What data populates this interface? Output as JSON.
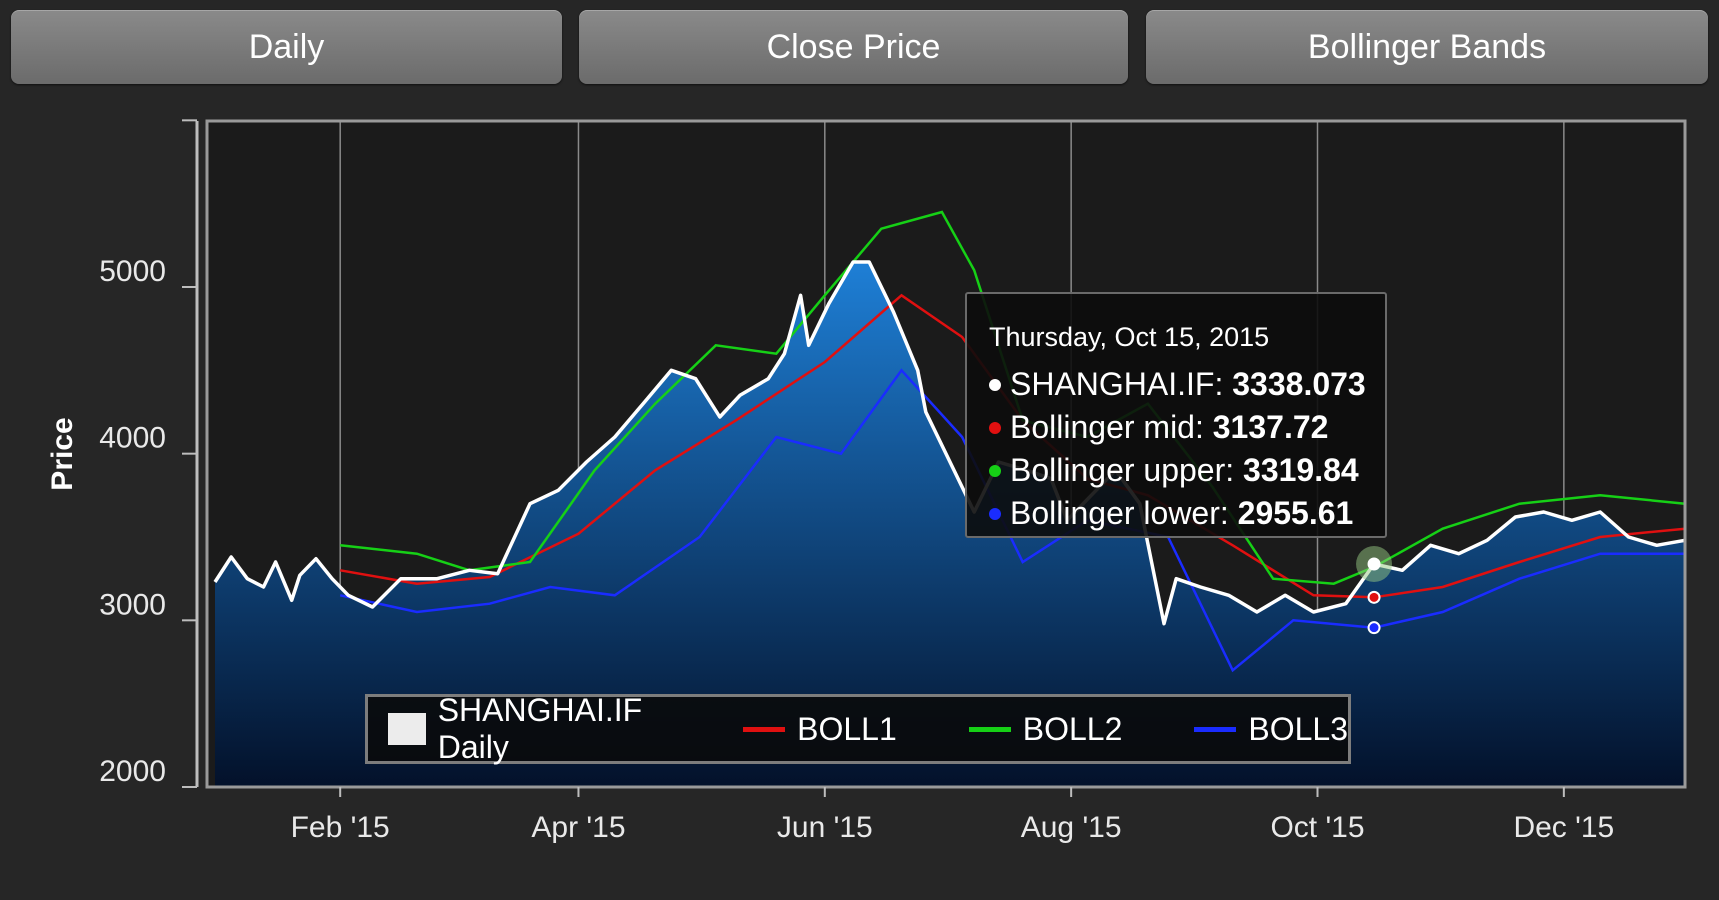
{
  "toolbar": {
    "interval_label": "Daily",
    "price_type_label": "Close Price",
    "indicator_label": "Bollinger Bands"
  },
  "colors": {
    "background": "#262626",
    "price_line": "#ffffff",
    "price_fill_top": "#1e7fd6",
    "price_fill_bottom": "#03112a",
    "boll_mid": "#e01010",
    "boll_upper": "#16d016",
    "boll_lower": "#1a2cff",
    "grid": "#8a8a8a"
  },
  "tooltip": {
    "date": "Thursday, Oct 15, 2015",
    "rows": [
      {
        "label": "SHANGHAI.IF:",
        "value": "3338.073",
        "color": "#ffffff"
      },
      {
        "label": "Bollinger mid:",
        "value": "3137.72",
        "color": "#e01010"
      },
      {
        "label": "Bollinger upper:",
        "value": "3319.84",
        "color": "#16d016"
      },
      {
        "label": "Bollinger lower:",
        "value": "2955.61",
        "color": "#1a2cff"
      }
    ]
  },
  "legend": {
    "items": [
      {
        "label": "SHANGHAI.IF Daily",
        "kind": "area"
      },
      {
        "label": "BOLL1",
        "kind": "line",
        "color": "#e01010"
      },
      {
        "label": "BOLL2",
        "kind": "line",
        "color": "#16d016"
      },
      {
        "label": "BOLL3",
        "kind": "line",
        "color": "#1a2cff"
      }
    ]
  },
  "chart_data": {
    "type": "area",
    "ylabel": "Price",
    "xlabel": "",
    "ylim": [
      2000,
      6000
    ],
    "xlim": [
      "2015-01-01",
      "2015-12-31"
    ],
    "yticks": [
      2000,
      3000,
      4000,
      5000
    ],
    "xticks": [
      {
        "label": "Feb '15",
        "date": "2015-02-01"
      },
      {
        "label": "Apr '15",
        "date": "2015-04-01"
      },
      {
        "label": "Jun '15",
        "date": "2015-06-01"
      },
      {
        "label": "Aug '15",
        "date": "2015-08-01"
      },
      {
        "label": "Oct '15",
        "date": "2015-10-01"
      },
      {
        "label": "Dec '15",
        "date": "2015-12-01"
      }
    ],
    "grid": true,
    "legend_position": "bottom",
    "highlight_date": "2015-10-15",
    "series": [
      {
        "name": "SHANGHAI.IF Daily",
        "x": [
          "2015-01-01",
          "2015-01-05",
          "2015-01-09",
          "2015-01-13",
          "2015-01-16",
          "2015-01-20",
          "2015-01-22",
          "2015-01-26",
          "2015-01-30",
          "2015-02-03",
          "2015-02-09",
          "2015-02-16",
          "2015-02-25",
          "2015-03-05",
          "2015-03-12",
          "2015-03-20",
          "2015-03-27",
          "2015-04-03",
          "2015-04-10",
          "2015-04-17",
          "2015-04-24",
          "2015-04-30",
          "2015-05-06",
          "2015-05-11",
          "2015-05-18",
          "2015-05-22",
          "2015-05-26",
          "2015-05-28",
          "2015-06-02",
          "2015-06-08",
          "2015-06-12",
          "2015-06-18",
          "2015-06-24",
          "2015-06-26",
          "2015-07-03",
          "2015-07-08",
          "2015-07-14",
          "2015-07-21",
          "2015-07-27",
          "2015-07-31",
          "2015-08-06",
          "2015-08-12",
          "2015-08-18",
          "2015-08-24",
          "2015-08-27",
          "2015-09-02",
          "2015-09-09",
          "2015-09-16",
          "2015-09-23",
          "2015-09-30",
          "2015-10-08",
          "2015-10-15",
          "2015-10-22",
          "2015-10-29",
          "2015-11-05",
          "2015-11-12",
          "2015-11-19",
          "2015-11-26",
          "2015-12-03",
          "2015-12-10",
          "2015-12-17",
          "2015-12-24",
          "2015-12-31"
        ],
        "values": [
          3230,
          3380,
          3250,
          3200,
          3350,
          3120,
          3270,
          3370,
          3250,
          3150,
          3080,
          3250,
          3250,
          3300,
          3280,
          3700,
          3780,
          3950,
          4100,
          4300,
          4500,
          4450,
          4220,
          4350,
          4450,
          4600,
          4950,
          4650,
          4900,
          5150,
          5150,
          4850,
          4500,
          4250,
          3900,
          3650,
          3950,
          3900,
          3850,
          3600,
          3750,
          3900,
          3700,
          2980,
          3250,
          3200,
          3150,
          3050,
          3150,
          3050,
          3100,
          3338,
          3300,
          3450,
          3400,
          3480,
          3620,
          3650,
          3600,
          3650,
          3500,
          3450,
          3480
        ]
      },
      {
        "name": "BOLL1",
        "x": [
          "2015-02-01",
          "2015-02-20",
          "2015-03-10",
          "2015-04-01",
          "2015-04-20",
          "2015-05-10",
          "2015-06-01",
          "2015-06-20",
          "2015-07-05",
          "2015-07-20",
          "2015-08-05",
          "2015-08-20",
          "2015-09-10",
          "2015-09-30",
          "2015-10-15",
          "2015-11-01",
          "2015-11-20",
          "2015-12-10",
          "2015-12-31"
        ],
        "values": [
          3300,
          3220,
          3260,
          3520,
          3900,
          4200,
          4550,
          4950,
          4700,
          4200,
          3850,
          3750,
          3450,
          3150,
          3138,
          3200,
          3350,
          3500,
          3550
        ]
      },
      {
        "name": "BOLL2",
        "x": [
          "2015-02-01",
          "2015-02-20",
          "2015-03-05",
          "2015-03-20",
          "2015-04-05",
          "2015-04-20",
          "2015-05-05",
          "2015-05-20",
          "2015-06-01",
          "2015-06-15",
          "2015-06-30",
          "2015-07-08",
          "2015-07-20",
          "2015-08-05",
          "2015-08-20",
          "2015-09-05",
          "2015-09-20",
          "2015-10-05",
          "2015-10-15",
          "2015-11-01",
          "2015-11-20",
          "2015-12-10",
          "2015-12-31"
        ],
        "values": [
          3450,
          3400,
          3300,
          3350,
          3900,
          4300,
          4650,
          4600,
          4950,
          5350,
          5450,
          5100,
          4200,
          4100,
          4300,
          3800,
          3250,
          3220,
          3320,
          3550,
          3700,
          3750,
          3700
        ]
      },
      {
        "name": "BOLL3",
        "x": [
          "2015-02-01",
          "2015-02-20",
          "2015-03-10",
          "2015-03-25",
          "2015-04-10",
          "2015-05-01",
          "2015-05-20",
          "2015-06-05",
          "2015-06-20",
          "2015-07-05",
          "2015-07-20",
          "2015-08-05",
          "2015-08-25",
          "2015-09-10",
          "2015-09-25",
          "2015-10-15",
          "2015-11-01",
          "2015-11-20",
          "2015-12-10",
          "2015-12-31"
        ],
        "values": [
          3150,
          3050,
          3100,
          3200,
          3150,
          3500,
          4100,
          4000,
          4500,
          4100,
          3350,
          3600,
          3500,
          2700,
          3000,
          2956,
          3050,
          3250,
          3400,
          3400
        ]
      }
    ]
  }
}
